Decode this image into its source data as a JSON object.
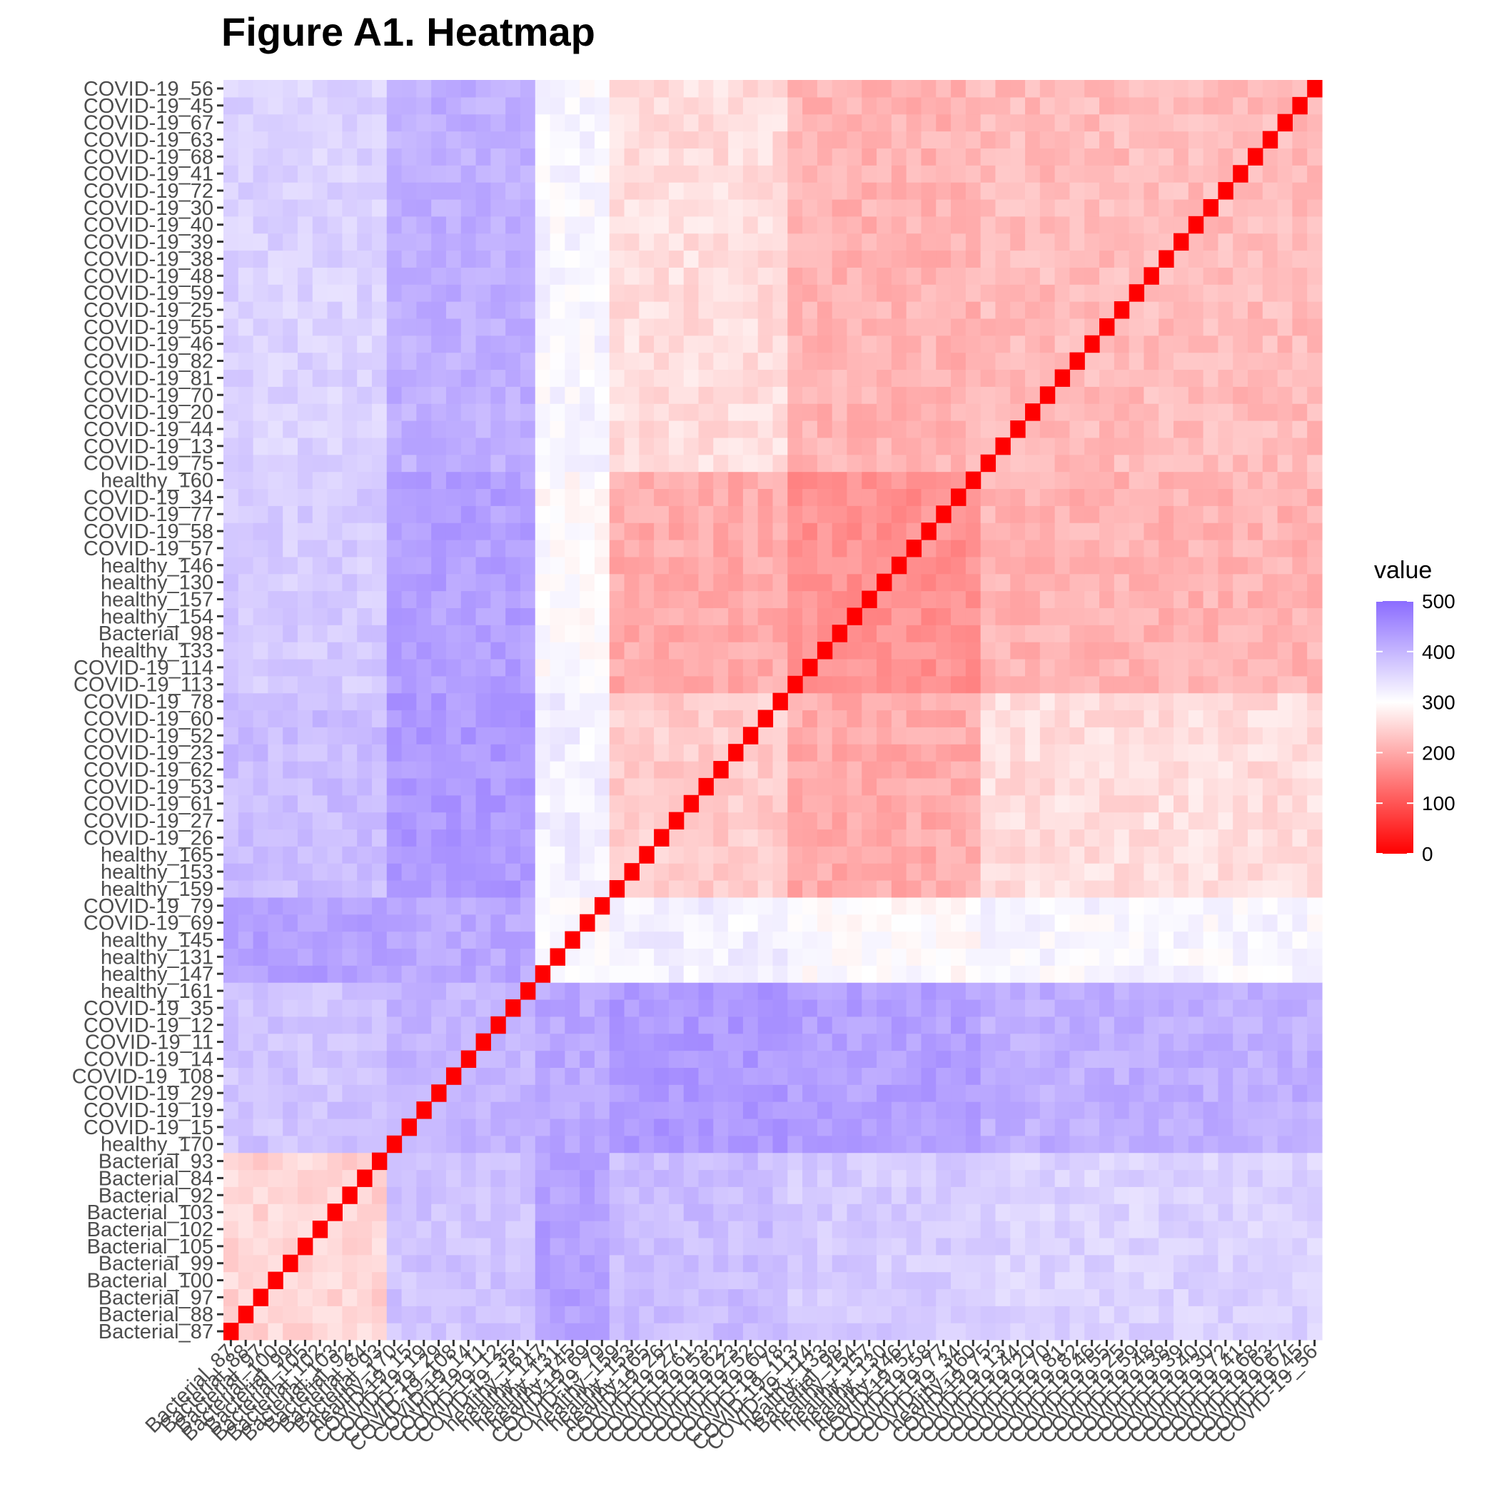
{
  "title": "Figure A1. Heatmap",
  "chart_data": {
    "type": "heatmap",
    "title": "Figure A1. Heatmap",
    "xlabel": "",
    "ylabel": "",
    "labels": [
      "Bacterial_87",
      "Bacterial_88",
      "Bacterial_97",
      "Bacterial_100",
      "Bacterial_99",
      "Bacterial_105",
      "Bacterial_102",
      "Bacterial_103",
      "Bacterial_92",
      "Bacterial_84",
      "Bacterial_93",
      "healthy_170",
      "COVID-19_15",
      "COVID-19_19",
      "COVID-19_29",
      "COVID-19_108",
      "COVID-19_14",
      "COVID-19_11",
      "COVID-19_12",
      "COVID-19_35",
      "healthy_161",
      "healthy_147",
      "healthy_131",
      "healthy_145",
      "COVID-19_69",
      "COVID-19_79",
      "healthy_159",
      "healthy_153",
      "healthy_165",
      "COVID-19_26",
      "COVID-19_27",
      "COVID-19_61",
      "COVID-19_53",
      "COVID-19_62",
      "COVID-19_23",
      "COVID-19_52",
      "COVID-19_60",
      "COVID-19_78",
      "COVID-19_113",
      "COVID-19_114",
      "healthy_133",
      "Bacterial_98",
      "healthy_154",
      "healthy_157",
      "healthy_130",
      "healthy_146",
      "COVID-19_57",
      "COVID-19_58",
      "COVID-19_77",
      "COVID-19_34",
      "healthy_160",
      "COVID-19_75",
      "COVID-19_13",
      "COVID-19_44",
      "COVID-19_20",
      "COVID-19_70",
      "COVID-19_81",
      "COVID-19_82",
      "COVID-19_46",
      "COVID-19_55",
      "COVID-19_25",
      "COVID-19_59",
      "COVID-19_48",
      "COVID-19_38",
      "COVID-19_39",
      "COVID-19_40",
      "COVID-19_30",
      "COVID-19_72",
      "COVID-19_41",
      "COVID-19_68",
      "COVID-19_63",
      "COVID-19_67",
      "COVID-19_45",
      "COVID-19_56"
    ],
    "group_of_labels": [
      0,
      0,
      0,
      0,
      0,
      0,
      0,
      0,
      0,
      0,
      0,
      1,
      1,
      1,
      1,
      1,
      1,
      1,
      1,
      1,
      1,
      2,
      2,
      2,
      2,
      2,
      3,
      3,
      3,
      3,
      3,
      3,
      3,
      3,
      3,
      3,
      3,
      3,
      4,
      4,
      4,
      4,
      4,
      4,
      4,
      4,
      4,
      4,
      4,
      4,
      4,
      5,
      5,
      5,
      5,
      5,
      5,
      5,
      5,
      5,
      5,
      5,
      5,
      5,
      5,
      5,
      5,
      5,
      5,
      5,
      5,
      5,
      5,
      5
    ],
    "group_block_values": [
      [
        250,
        380,
        430,
        390,
        370,
        360
      ],
      [
        380,
        400,
        420,
        440,
        430,
        410
      ],
      [
        430,
        420,
        300,
        320,
        300,
        310
      ],
      [
        390,
        440,
        320,
        240,
        200,
        260
      ],
      [
        370,
        430,
        300,
        200,
        170,
        210
      ],
      [
        360,
        410,
        310,
        260,
        210,
        220
      ]
    ],
    "diagonal_value": 0,
    "value_range": [
      0,
      500
    ],
    "color_scale": {
      "low": "#ff0000",
      "mid": "#ffffff",
      "high": "#8b6cff",
      "midpoint": 300
    },
    "legend": {
      "title": "value",
      "ticks": [
        500,
        400,
        300,
        200,
        100,
        0
      ],
      "position": "right"
    }
  }
}
